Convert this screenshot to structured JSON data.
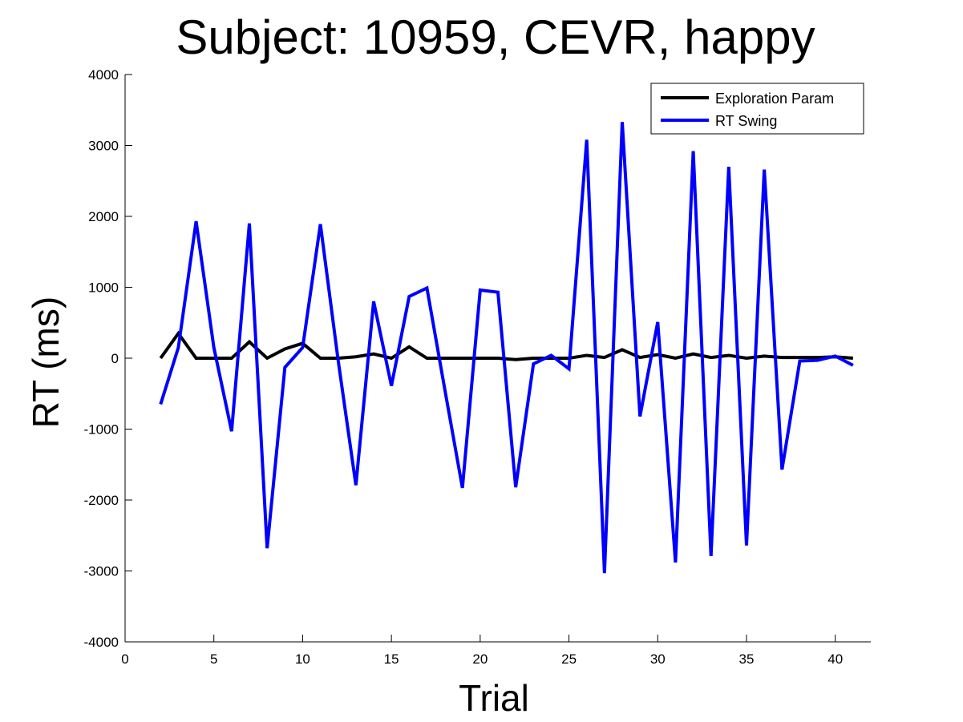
{
  "chart_data": {
    "type": "line",
    "title": "Subject: 10959, CEVR, happy",
    "xlabel": "Trial",
    "ylabel": "RT (ms)",
    "xlim": [
      0,
      42
    ],
    "ylim": [
      -4000,
      4000
    ],
    "xticks": [
      0,
      5,
      10,
      15,
      20,
      25,
      30,
      35,
      40
    ],
    "yticks": [
      -4000,
      -3000,
      -2000,
      -1000,
      0,
      1000,
      2000,
      3000,
      4000
    ],
    "grid": false,
    "legend_position": "top-right",
    "series": [
      {
        "name": "Exploration Param",
        "color": "#000000",
        "x": [
          2,
          3,
          4,
          5,
          6,
          7,
          8,
          9,
          10,
          11,
          12,
          13,
          14,
          15,
          16,
          17,
          18,
          19,
          20,
          21,
          22,
          23,
          24,
          25,
          26,
          27,
          28,
          29,
          30,
          31,
          32,
          33,
          34,
          35,
          36,
          37,
          38,
          39,
          40,
          41
        ],
        "y": [
          0,
          350,
          0,
          0,
          0,
          230,
          0,
          130,
          210,
          0,
          0,
          20,
          60,
          0,
          160,
          0,
          0,
          0,
          0,
          0,
          -20,
          0,
          0,
          0,
          40,
          10,
          120,
          10,
          50,
          0,
          60,
          10,
          40,
          0,
          30,
          10,
          10,
          10,
          20,
          0
        ]
      },
      {
        "name": "RT Swing",
        "color": "#0000ff",
        "x": [
          2,
          3,
          4,
          5,
          6,
          7,
          8,
          9,
          10,
          11,
          12,
          13,
          14,
          15,
          16,
          17,
          18,
          19,
          20,
          21,
          22,
          23,
          24,
          25,
          26,
          27,
          28,
          29,
          30,
          31,
          32,
          33,
          34,
          35,
          36,
          37,
          38,
          39,
          40,
          41
        ],
        "y": [
          -650,
          150,
          1930,
          150,
          -1030,
          1900,
          -2680,
          -130,
          150,
          1890,
          -30,
          -1790,
          800,
          -390,
          870,
          990,
          -430,
          -1830,
          960,
          930,
          -1820,
          -80,
          40,
          -150,
          3080,
          -3030,
          3330,
          -820,
          510,
          -2880,
          2920,
          -2790,
          2700,
          -2640,
          2660,
          -1570,
          -40,
          -30,
          30,
          -100
        ]
      }
    ]
  }
}
